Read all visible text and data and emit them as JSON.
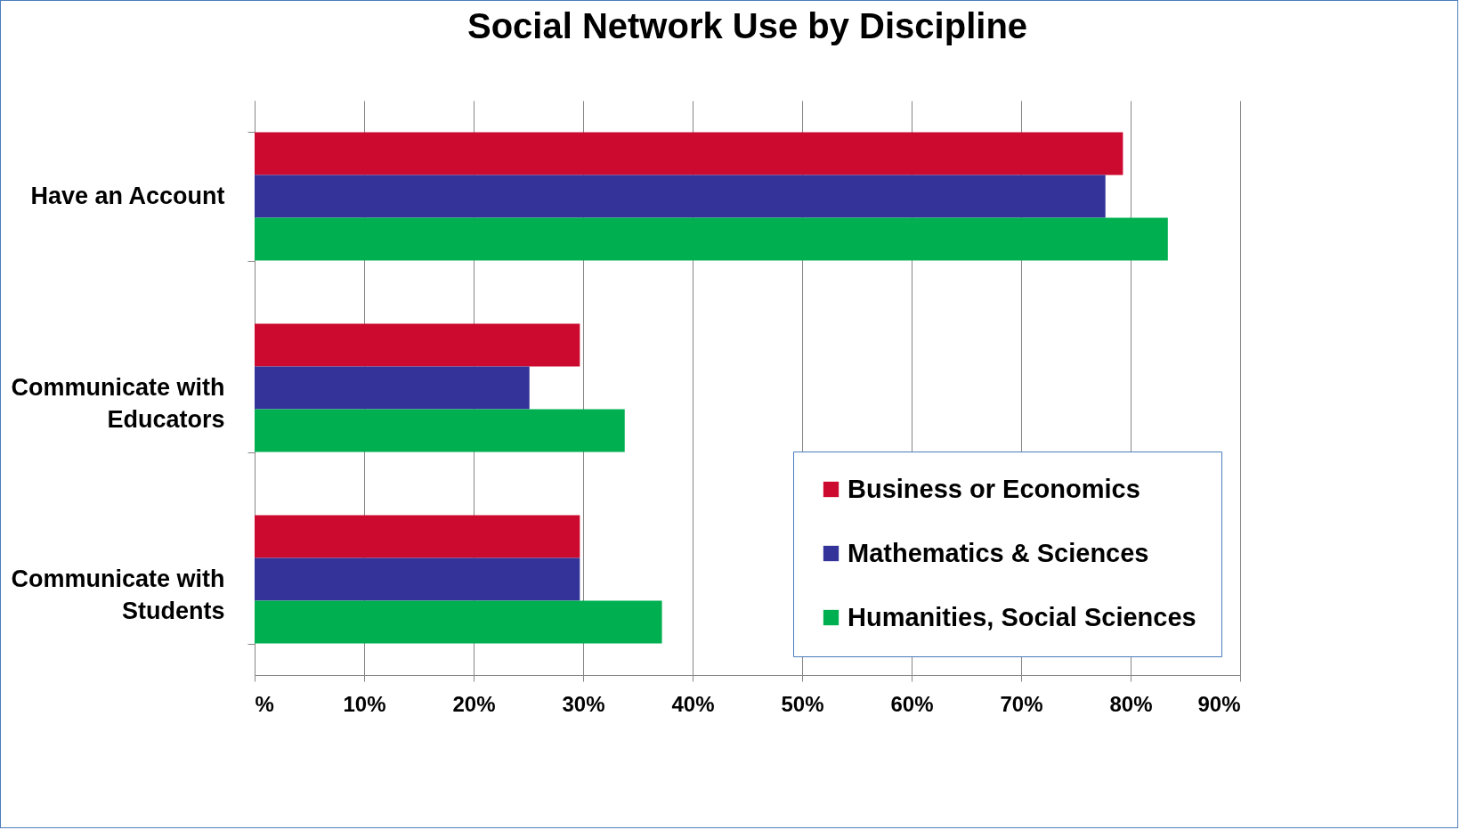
{
  "chart_data": {
    "type": "bar",
    "orientation": "horizontal",
    "title": "Social Network Use by Discipline",
    "categories": [
      "Have an Account",
      "Communicate with Educators",
      "Communicate with Students"
    ],
    "series": [
      {
        "name": "Business or Economics",
        "color": "#cc0a2f",
        "values": [
          79.3,
          29.7,
          29.7
        ]
      },
      {
        "name": "Mathematics & Sciences",
        "color": "#333399",
        "values": [
          77.7,
          25.1,
          29.7
        ]
      },
      {
        "name": "Humanities, Social Sciences",
        "color": "#00b050",
        "values": [
          83.4,
          33.8,
          37.2
        ]
      }
    ],
    "xlim": [
      0,
      90
    ],
    "xticks": [
      {
        "value": 0,
        "label": "%"
      },
      {
        "value": 10,
        "label": "10%"
      },
      {
        "value": 20,
        "label": "20%"
      },
      {
        "value": 30,
        "label": "30%"
      },
      {
        "value": 40,
        "label": "40%"
      },
      {
        "value": 50,
        "label": "50%"
      },
      {
        "value": 60,
        "label": "60%"
      },
      {
        "value": 70,
        "label": "70%"
      },
      {
        "value": 80,
        "label": "80%"
      },
      {
        "value": 90,
        "label": "90%"
      }
    ],
    "grid": "x",
    "legend": "bottom right"
  }
}
